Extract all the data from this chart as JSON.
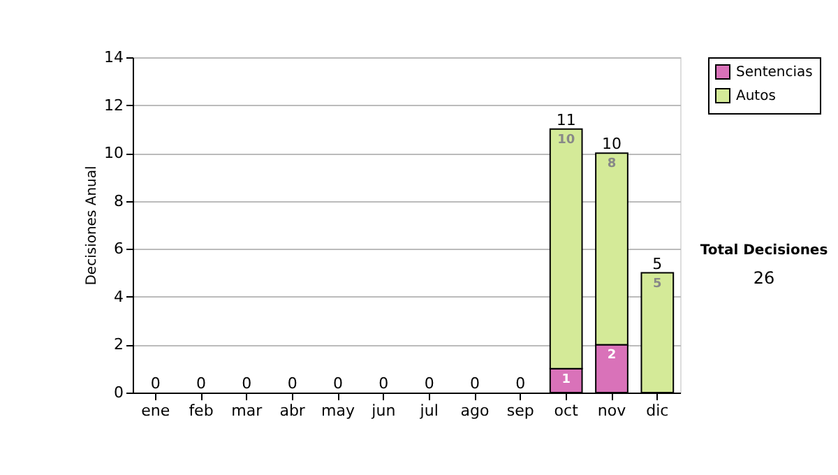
{
  "chart_data": {
    "type": "bar",
    "stacked": true,
    "ylabel": "Decisiones Anual",
    "categories": [
      "ene",
      "feb",
      "mar",
      "abr",
      "may",
      "jun",
      "jul",
      "ago",
      "sep",
      "oct",
      "nov",
      "dic"
    ],
    "series": [
      {
        "name": "Sentencias",
        "color": "#d972b9",
        "values": [
          0,
          0,
          0,
          0,
          0,
          0,
          0,
          0,
          0,
          1,
          2,
          0
        ],
        "value_labels": [
          null,
          null,
          null,
          null,
          null,
          null,
          null,
          null,
          null,
          "1",
          "2",
          null
        ]
      },
      {
        "name": "Autos",
        "color": "#d4ea98",
        "values": [
          0,
          0,
          0,
          0,
          0,
          0,
          0,
          0,
          0,
          10,
          8,
          5
        ],
        "value_labels": [
          null,
          null,
          null,
          null,
          null,
          null,
          null,
          null,
          null,
          "10",
          "8",
          "5"
        ]
      }
    ],
    "totals": [
      "0",
      "0",
      "0",
      "0",
      "0",
      "0",
      "0",
      "0",
      "0",
      "11",
      "10",
      "5"
    ],
    "ylim": [
      0,
      14
    ],
    "yticks": [
      0,
      2,
      4,
      6,
      8,
      10,
      12,
      14
    ],
    "grid": "y",
    "legend": "right",
    "annotations": [
      "Total Decisiones",
      "26"
    ]
  }
}
